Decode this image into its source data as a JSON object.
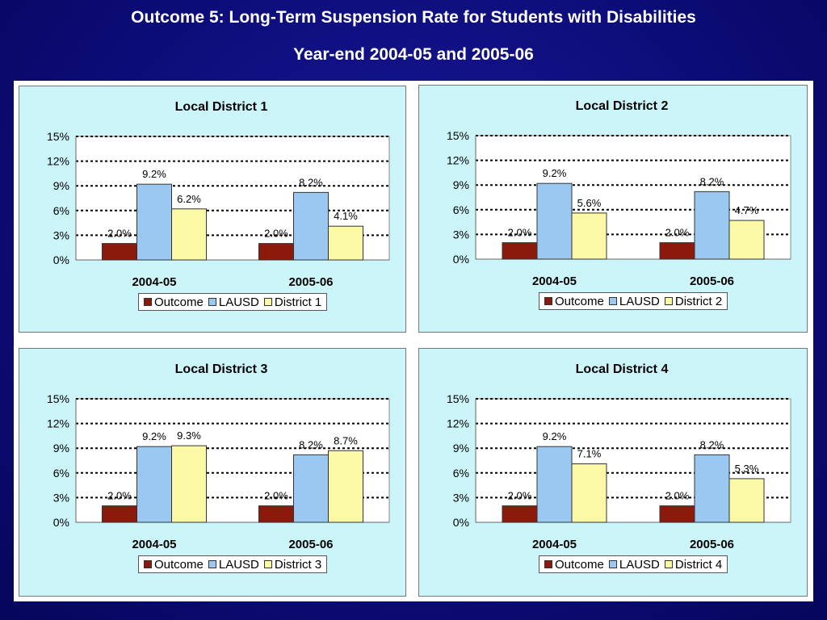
{
  "slide": {
    "title_line1": "Outcome 5: Long-Term Suspension Rate for Students with Disabilities",
    "title_line2": "Year-end 2004-05 and 2005-06"
  },
  "colors": {
    "Outcome": "#8b1a0c",
    "LAUSD": "#9ac8f0",
    "District": "#fbf8a6"
  },
  "chart_data": [
    {
      "type": "bar",
      "title": "Local District 1",
      "categories": [
        "2004-05",
        "2005-06"
      ],
      "series": [
        {
          "name": "Outcome",
          "values": [
            2.0,
            2.0
          ]
        },
        {
          "name": "LAUSD",
          "values": [
            9.2,
            8.2
          ]
        },
        {
          "name": "District 1",
          "values": [
            6.2,
            4.1
          ]
        }
      ],
      "value_labels": [
        [
          "2.0%",
          "2.0%"
        ],
        [
          "9.2%",
          "8.2%"
        ],
        [
          "6.2%",
          "4.1%"
        ]
      ],
      "yticks": [
        "0%",
        "3%",
        "6%",
        "9%",
        "12%",
        "15%"
      ],
      "ylim": [
        0,
        15
      ],
      "grid": "dotted",
      "legend": "bottom"
    },
    {
      "type": "bar",
      "title": "Local District 2",
      "categories": [
        "2004-05",
        "2005-06"
      ],
      "series": [
        {
          "name": "Outcome",
          "values": [
            2.0,
            2.0
          ]
        },
        {
          "name": "LAUSD",
          "values": [
            9.2,
            8.2
          ]
        },
        {
          "name": "District 2",
          "values": [
            5.6,
            4.7
          ]
        }
      ],
      "value_labels": [
        [
          "2.0%",
          "2.0%"
        ],
        [
          "9.2%",
          "8.2%"
        ],
        [
          "5.6%",
          "4.7%"
        ]
      ],
      "yticks": [
        "0%",
        "3%",
        "6%",
        "9%",
        "12%",
        "15%"
      ],
      "ylim": [
        0,
        15
      ],
      "grid": "dotted",
      "legend": "bottom"
    },
    {
      "type": "bar",
      "title": "Local District 3",
      "categories": [
        "2004-05",
        "2005-06"
      ],
      "series": [
        {
          "name": "Outcome",
          "values": [
            2.0,
            2.0
          ]
        },
        {
          "name": "LAUSD",
          "values": [
            9.2,
            8.2
          ]
        },
        {
          "name": "District 3",
          "values": [
            9.3,
            8.7
          ]
        }
      ],
      "value_labels": [
        [
          "2.0%",
          "2.0%"
        ],
        [
          "9.2%",
          "8.2%"
        ],
        [
          "9.3%",
          "8.7%"
        ]
      ],
      "yticks": [
        "0%",
        "3%",
        "6%",
        "9%",
        "12%",
        "15%"
      ],
      "ylim": [
        0,
        15
      ],
      "grid": "dotted",
      "legend": "bottom"
    },
    {
      "type": "bar",
      "title": "Local District 4",
      "categories": [
        "2004-05",
        "2005-06"
      ],
      "series": [
        {
          "name": "Outcome",
          "values": [
            2.0,
            2.0
          ]
        },
        {
          "name": "LAUSD",
          "values": [
            9.2,
            8.2
          ]
        },
        {
          "name": "District 4",
          "values": [
            7.1,
            5.3
          ]
        }
      ],
      "value_labels": [
        [
          "2.0%",
          "2.0%"
        ],
        [
          "9.2%",
          "8.2%"
        ],
        [
          "7.1%",
          "5.3%"
        ]
      ],
      "yticks": [
        "0%",
        "3%",
        "6%",
        "9%",
        "12%",
        "15%"
      ],
      "ylim": [
        0,
        15
      ],
      "grid": "dotted",
      "legend": "bottom"
    }
  ]
}
